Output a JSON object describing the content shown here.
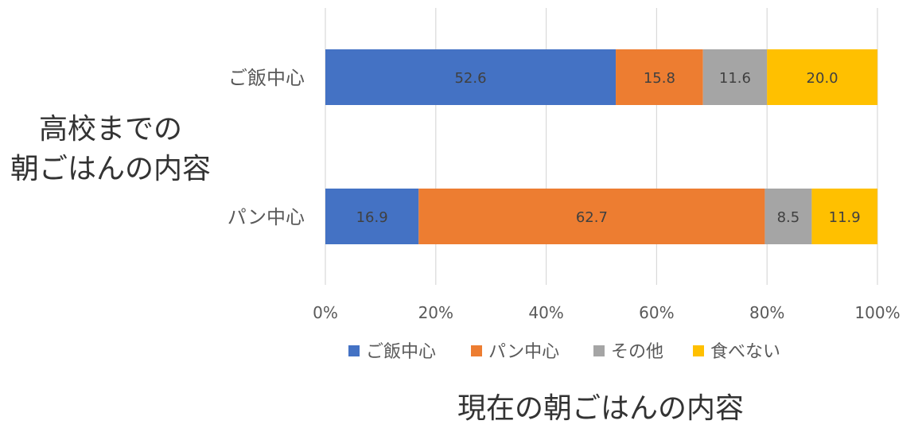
{
  "chart_data": {
    "type": "bar",
    "orientation": "horizontal",
    "stacking": "percent",
    "categories": [
      "ご飯中心",
      "パン中心"
    ],
    "series": [
      {
        "name": "ご飯中心",
        "values": [
          52.6,
          16.9
        ],
        "color": "#4472C4"
      },
      {
        "name": "パン中心",
        "values": [
          15.8,
          62.7
        ],
        "color": "#ED7D31"
      },
      {
        "name": "その他",
        "values": [
          11.6,
          8.5
        ],
        "color": "#A5A5A5"
      },
      {
        "name": "食べない",
        "values": [
          20.0,
          11.9
        ],
        "color": "#FFC000"
      }
    ],
    "data_labels": [
      [
        "52.6",
        "15.8",
        "11.6",
        "20.0"
      ],
      [
        "16.9",
        "62.7",
        "8.5",
        "11.9"
      ]
    ],
    "xlim": [
      0,
      100
    ],
    "x_ticks": [
      0,
      20,
      40,
      60,
      80,
      100
    ],
    "x_tick_labels": [
      "0%",
      "20%",
      "40%",
      "60%",
      "80%",
      "100%"
    ],
    "xlabel": "現在の朝ごはんの内容",
    "ylabel_lines": [
      "高校までの",
      "朝ごはんの内容"
    ],
    "legend_position": "bottom",
    "grid": true
  }
}
